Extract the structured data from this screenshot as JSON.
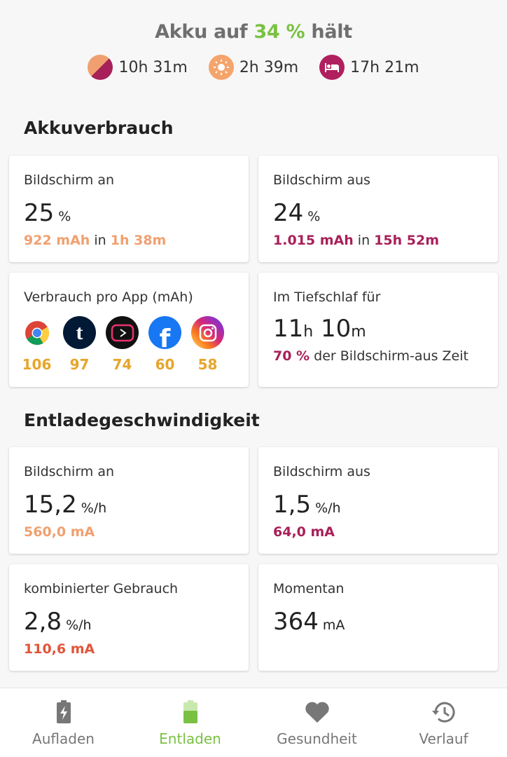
{
  "header": {
    "prefix": "Akku auf ",
    "percent": "34 %",
    "suffix": " hält",
    "stats": [
      {
        "icon": "combined-usage-icon",
        "value": "10h 31m"
      },
      {
        "icon": "sun-icon",
        "value": "2h 39m"
      },
      {
        "icon": "sleep-bed-icon",
        "value": "17h 21m"
      }
    ]
  },
  "usage": {
    "title": "Akkuverbrauch",
    "screen_on": {
      "label": "Bildschirm an",
      "value": "25",
      "unit": "%",
      "mah": "922 mAh",
      "in": "in",
      "time": "1h 38m"
    },
    "screen_off": {
      "label": "Bildschirm aus",
      "value": "24",
      "unit": "%",
      "mah": "1.015 mAh",
      "in": "in",
      "time": "15h 52m"
    },
    "apps": {
      "label": "Verbrauch pro App (mAh)",
      "items": [
        {
          "icon": "chrome-icon",
          "value": "106"
        },
        {
          "icon": "tumblr-icon",
          "value": "97"
        },
        {
          "icon": "youtube-vanced-icon",
          "value": "74"
        },
        {
          "icon": "facebook-icon",
          "value": "60"
        },
        {
          "icon": "instagram-icon",
          "value": "58"
        }
      ]
    },
    "deep_sleep": {
      "label": "Im Tiefschlaf für",
      "hours": "11",
      "h": "h",
      "minutes": "10",
      "m": "m",
      "pct": "70 %",
      "desc": "der Bildschirm-aus Zeit"
    }
  },
  "discharge": {
    "title": "Entladegeschwindigkeit",
    "screen_on": {
      "label": "Bildschirm an",
      "value": "15,2",
      "unit": "%/h",
      "ma": "560,0 mA"
    },
    "screen_off": {
      "label": "Bildschirm aus",
      "value": "1,5",
      "unit": "%/h",
      "ma": "64,0 mA"
    },
    "combined": {
      "label": "kombinierter Gebrauch",
      "value": "2,8",
      "unit": "%/h",
      "ma": "110,6 mA"
    },
    "current": {
      "label": "Momentan",
      "value": "364",
      "unit": "mA"
    }
  },
  "nav": [
    {
      "label": "Aufladen",
      "icon": "charging-battery-icon"
    },
    {
      "label": "Entladen",
      "icon": "battery-icon",
      "active": true
    },
    {
      "label": "Gesundheit",
      "icon": "heart-icon"
    },
    {
      "label": "Verlauf",
      "icon": "history-icon"
    }
  ],
  "colors": {
    "green": "#7ac143",
    "orange": "#f0a070",
    "purple": "#a8205a",
    "red": "#e0553a"
  }
}
